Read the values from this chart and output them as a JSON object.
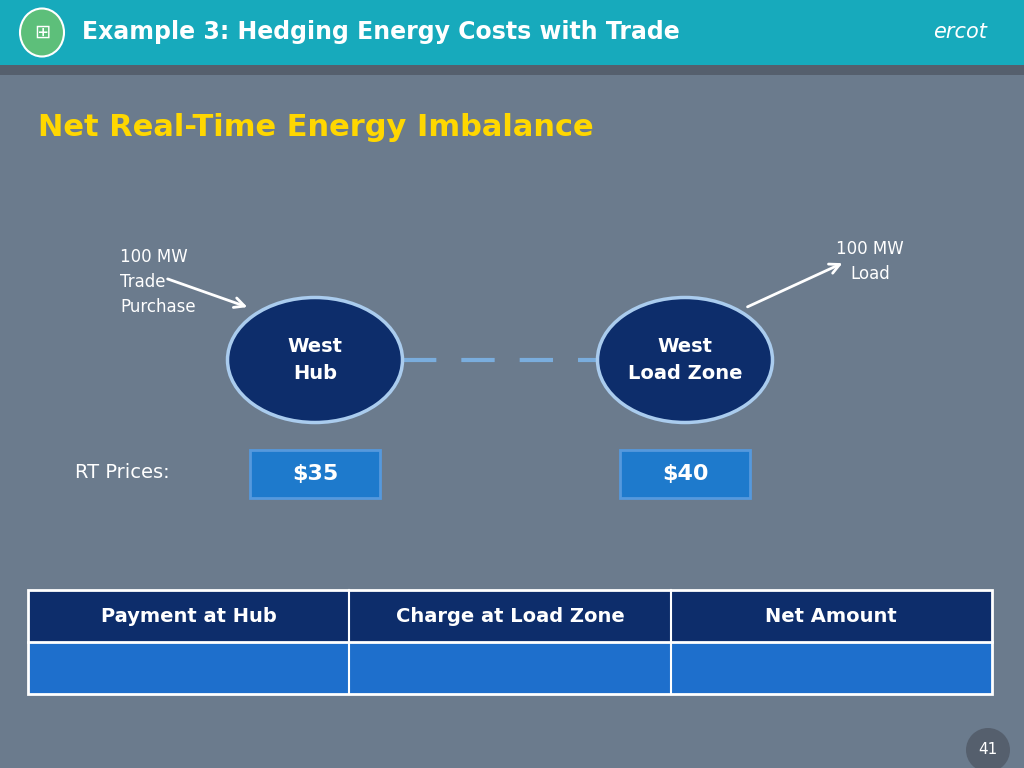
{
  "title": "Example 3: Hedging Energy Costs with Trade",
  "subtitle": "Net Real-Time Energy Imbalance",
  "subtitle_color": "#FFD700",
  "header_bg": "#17AABC",
  "body_bg": "#6B7B8D",
  "dark_stripe": "#555F6D",
  "hub_label": "West\nHub",
  "zone_label": "West\nLoad Zone",
  "hub_color": "#0D2D6B",
  "zone_color": "#0D2D6B",
  "ellipse_border": "#AACCEE",
  "dashed_line_color": "#7AADDD",
  "label_left": "100 MW\nTrade\nPurchase",
  "label_right": "100 MW\nLoad",
  "rt_label": "RT Prices:",
  "price_hub": "$35",
  "price_zone": "$40",
  "price_box_color": "#1E7ACC",
  "price_box_border": "#5599DD",
  "table_headers": [
    "Payment at Hub",
    "Charge at Load Zone",
    "Net Amount"
  ],
  "table_header_bg": "#0D2D6B",
  "table_row_bg": "#1E6FCC",
  "page_number": "41",
  "icon_color": "#5DBF7A"
}
